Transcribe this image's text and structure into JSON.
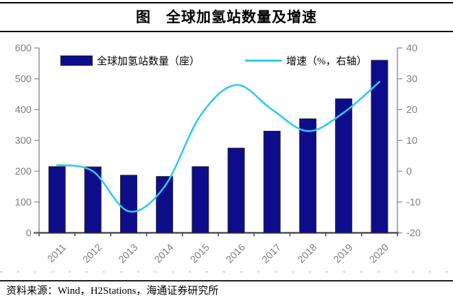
{
  "title": {
    "text": "图　全球加氢站数量及增速"
  },
  "source": {
    "text": "资料来源：Wind，H2Stations，海通证券研究所"
  },
  "colors": {
    "bar_fill": "#0d0d8c",
    "bar_border": "#2b2b2b",
    "line": "#2fc9f2",
    "axis": "#808080",
    "baseline": "#4d4d4d",
    "tick_label": "#7f7f7f",
    "rule": "#000000"
  },
  "chart_data": {
    "type": "bar+line",
    "title": "图　全球加氢站数量及增速",
    "categories": [
      "2011",
      "2012",
      "2013",
      "2014",
      "2015",
      "2016",
      "2017",
      "2018",
      "2019",
      "2020"
    ],
    "series": [
      {
        "name": "全球加氢站数量（座）",
        "type": "bar",
        "axis": "left",
        "color": "#0d0d8c",
        "values": [
          215,
          214,
          187,
          183,
          215,
          275,
          330,
          370,
          435,
          560
        ]
      },
      {
        "name": "增速（%，右轴）",
        "type": "line",
        "axis": "right",
        "color": "#2fc9f2",
        "values": [
          2,
          0,
          -13,
          -5,
          18,
          28,
          20,
          13,
          19,
          29
        ]
      }
    ],
    "left_axis": {
      "min": 0,
      "max": 600,
      "step": 100,
      "tick_labels": [
        "600",
        "500",
        "400",
        "300",
        "200",
        "100",
        "0"
      ]
    },
    "right_axis": {
      "min": -20,
      "max": 40,
      "step": 10,
      "tick_labels": [
        "40",
        "30",
        "20",
        "10",
        "0",
        "-10",
        "-20"
      ]
    },
    "legend_position": "top-inside",
    "grid": false,
    "xlabel": "",
    "ylabel": ""
  }
}
